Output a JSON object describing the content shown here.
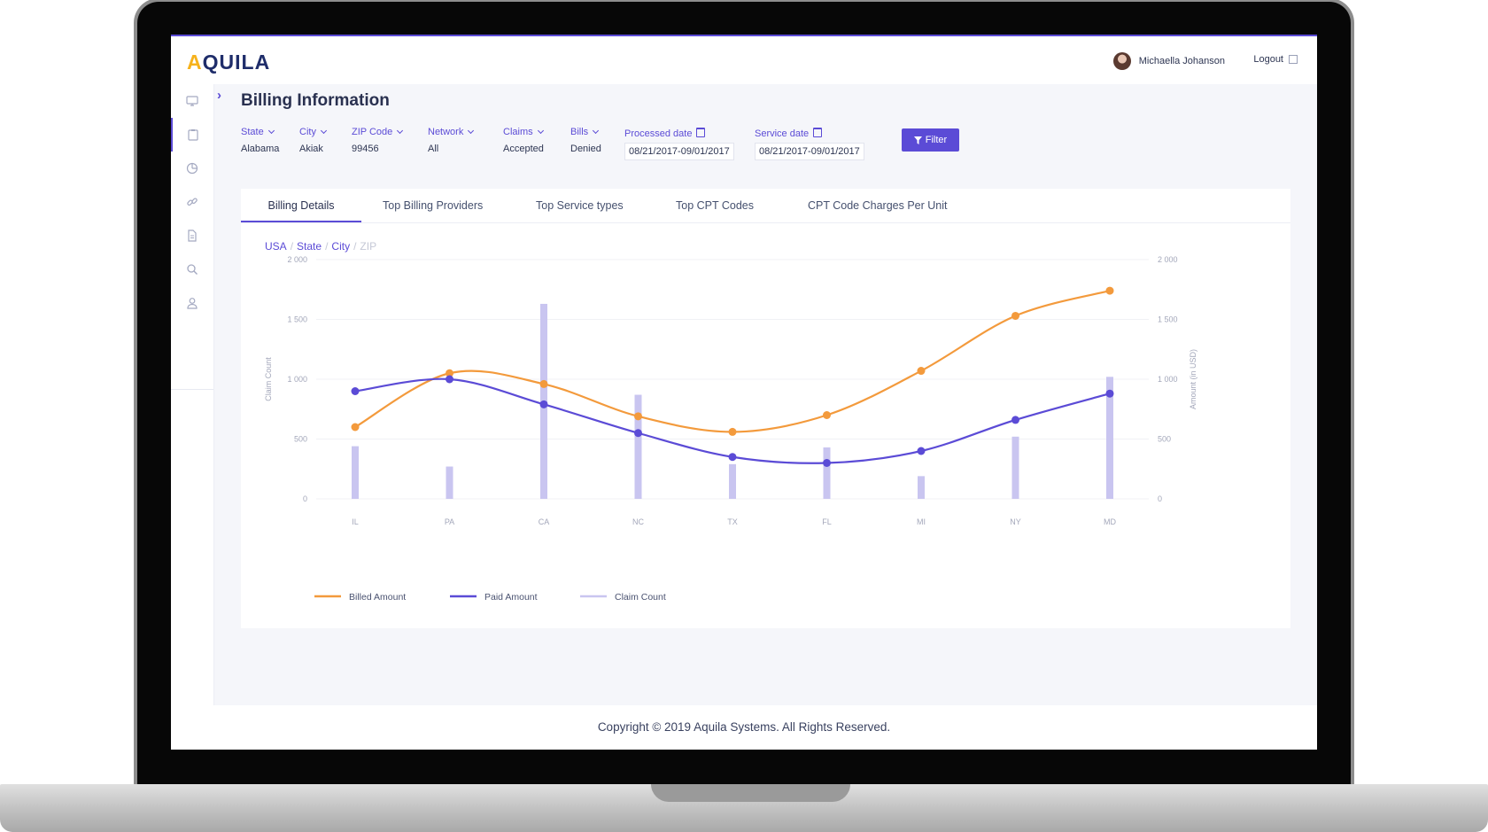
{
  "app": {
    "logo_initial": "A",
    "logo_rest": "QUILA"
  },
  "header": {
    "user_name": "Michaella Johanson",
    "logout_label": "Logout"
  },
  "sidebar": {
    "items": [
      {
        "icon": "monitor-icon",
        "active": false
      },
      {
        "icon": "clipboard-icon",
        "active": true
      },
      {
        "icon": "pie-chart-icon",
        "active": false
      },
      {
        "icon": "link-icon",
        "active": false
      },
      {
        "icon": "document-icon",
        "active": false
      },
      {
        "icon": "search-icon",
        "active": false
      },
      {
        "icon": "user-icon",
        "active": false
      }
    ]
  },
  "page": {
    "title": "Billing Information"
  },
  "filters": {
    "state": {
      "label": "State",
      "value": "Alabama"
    },
    "city": {
      "label": "City",
      "value": "Akiak"
    },
    "zip": {
      "label": "ZIP Code",
      "value": "99456"
    },
    "network": {
      "label": "Network",
      "value": "All"
    },
    "claims": {
      "label": "Claims",
      "value": "Accepted"
    },
    "bills": {
      "label": "Bills",
      "value": "Denied"
    },
    "processed": {
      "label": "Processed date",
      "value": "08/21/2017-09/01/2017"
    },
    "service": {
      "label": "Service date",
      "value": "08/21/2017-09/01/2017"
    },
    "button_label": "Filter"
  },
  "tabs": [
    {
      "label": "Billing Details",
      "active": true
    },
    {
      "label": "Top Billing Providers",
      "active": false
    },
    {
      "label": "Top Service types",
      "active": false
    },
    {
      "label": "Top CPT Codes",
      "active": false
    },
    {
      "label": "CPT Code Charges Per Unit",
      "active": false
    }
  ],
  "breadcrumb": {
    "usa": "USA",
    "state": "State",
    "city": "City",
    "zip": "ZIP",
    "sep": "/"
  },
  "chart_data": {
    "type": "line",
    "categories": [
      "IL",
      "PA",
      "CA",
      "NC",
      "TX",
      "FL",
      "MI",
      "NY",
      "MD"
    ],
    "series": [
      {
        "name": "Billed Amount",
        "kind": "line",
        "axis": "right",
        "color": "#f39a3c",
        "values": [
          600,
          1050,
          960,
          690,
          560,
          700,
          1070,
          1530,
          1740
        ]
      },
      {
        "name": "Paid Amount",
        "kind": "line",
        "axis": "right",
        "color": "#5b4bd6",
        "values": [
          900,
          1000,
          790,
          550,
          350,
          300,
          400,
          660,
          880
        ]
      },
      {
        "name": "Claim Count",
        "kind": "bar",
        "axis": "left",
        "color": "#c9c5f0",
        "values": [
          440,
          270,
          1630,
          870,
          290,
          430,
          190,
          520,
          1020
        ]
      }
    ],
    "yticks": [
      "0",
      "500",
      "1 000",
      "1 500",
      "2 000"
    ],
    "ylim": [
      0,
      2000
    ],
    "ylabel_left": "Claim Count",
    "ylabel_right": "Amount (in USD)",
    "legend_position": "bottom-left",
    "grid": true
  }
}
